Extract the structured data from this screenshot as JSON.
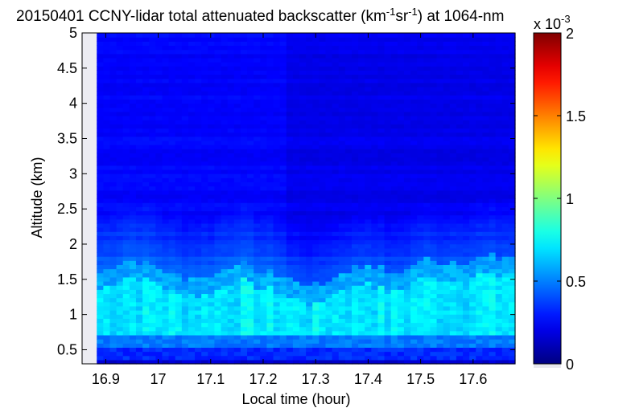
{
  "chart_data": {
    "type": "heatmap",
    "title_main": "20150401 CCNY-lidar total attenuated backscatter (km",
    "title_sup1": "-1",
    "title_mid": "sr",
    "title_sup2": "-1",
    "title_end": ") at 1064-nm",
    "xlabel": "Local time (hour)",
    "ylabel": "Altitude (km)",
    "xlim": [
      16.855,
      17.68
    ],
    "ylim": [
      0.3,
      5.0
    ],
    "xticks": [
      "16.9",
      "17",
      "17.1",
      "17.2",
      "17.3",
      "17.4",
      "17.5",
      "17.6"
    ],
    "xtick_values": [
      16.9,
      17.0,
      17.1,
      17.2,
      17.3,
      17.4,
      17.5,
      17.6
    ],
    "yticks": [
      "0.5",
      "1",
      "1.5",
      "2",
      "2.5",
      "3",
      "3.5",
      "4",
      "4.5",
      "5"
    ],
    "ytick_values": [
      0.5,
      1.0,
      1.5,
      2.0,
      2.5,
      3.0,
      3.5,
      4.0,
      4.5,
      5.0
    ],
    "data_start_time": 16.883,
    "colorbar": {
      "range": [
        0,
        0.002
      ],
      "ticks": [
        "0",
        "0.5",
        "1",
        "1.5",
        "2"
      ],
      "tick_values": [
        0,
        0.0005,
        0.001,
        0.0015,
        0.002
      ],
      "exponent_base": "x 10",
      "exponent_power": "-3",
      "colormap": "jet"
    },
    "boundary_layer_top_km": [
      [
        16.89,
        1.6
      ],
      [
        16.94,
        1.78
      ],
      [
        16.98,
        1.75
      ],
      [
        17.0,
        1.66
      ],
      [
        17.05,
        1.52
      ],
      [
        17.1,
        1.55
      ],
      [
        17.15,
        1.75
      ],
      [
        17.2,
        1.62
      ],
      [
        17.25,
        1.5
      ],
      [
        17.3,
        1.4
      ],
      [
        17.35,
        1.6
      ],
      [
        17.4,
        1.72
      ],
      [
        17.45,
        1.55
      ],
      [
        17.5,
        1.78
      ],
      [
        17.55,
        1.74
      ],
      [
        17.6,
        1.8
      ],
      [
        17.66,
        1.82
      ]
    ]
  }
}
